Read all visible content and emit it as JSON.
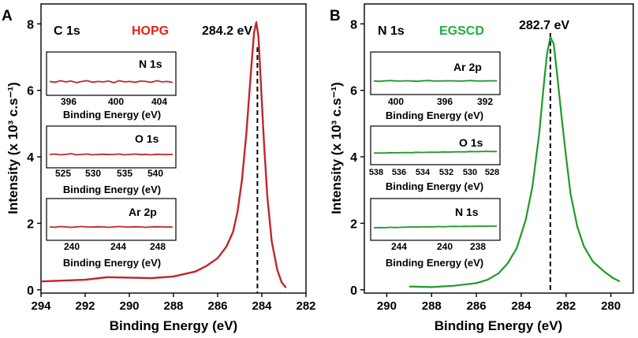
{
  "colors": {
    "hopg": "#c0272d",
    "egscd": "#1f9a2a",
    "axis": "#000000"
  },
  "chart_data": [
    {
      "panel_label": "A",
      "type": "line",
      "title": "C 1s",
      "sample": "HOPG",
      "peak_label": "284.2 eV",
      "peak_position": 284.2,
      "xlabel": "Binding Energy (eV)",
      "ylabel": "Intensity (x 10³  c.s⁻¹)",
      "xlim": [
        294,
        282
      ],
      "ylim": [
        -0.1,
        8.6
      ],
      "x_ticks": [
        294,
        292,
        290,
        288,
        286,
        284,
        282
      ],
      "x_tick_labels": [
        "294",
        "292",
        "290",
        "288",
        "286",
        "284",
        "282"
      ],
      "y_ticks": [
        0,
        2,
        4,
        6,
        8
      ],
      "y_tick_labels": [
        "0",
        "2",
        "4",
        "6",
        "8"
      ],
      "series": [
        {
          "name": "HOPG C 1s",
          "x": [
            294,
            292,
            291,
            289,
            288,
            287,
            286.5,
            286,
            285.6,
            285.3,
            285.1,
            284.9,
            284.7,
            284.5,
            284.35,
            284.25,
            284.15,
            284.05,
            283.9,
            283.75,
            283.55,
            283.3,
            283.1,
            282.9
          ],
          "y": [
            0.25,
            0.3,
            0.38,
            0.35,
            0.4,
            0.55,
            0.72,
            0.95,
            1.3,
            1.75,
            2.35,
            3.3,
            4.7,
            6.5,
            7.75,
            8.05,
            7.6,
            6.3,
            4.4,
            2.8,
            1.45,
            0.6,
            0.22,
            0.06
          ]
        }
      ],
      "insets": [
        {
          "title": "N 1s",
          "xlabel": "Binding Energy (eV)",
          "x_tick_labels": [
            "396",
            "400",
            "404"
          ],
          "signal": [
            0.5,
            0.4,
            0.6,
            0.45,
            0.55,
            0.35,
            0.5,
            0.6,
            0.4,
            0.5,
            0.45,
            0.55,
            0.35,
            0.6,
            0.45,
            0.5,
            0.4,
            0.55,
            0.5,
            0.4,
            0.6,
            0.45,
            0.5,
            0.38
          ]
        },
        {
          "title": "O 1s",
          "xlabel": "Binding Energy (eV)",
          "x_tick_labels": [
            "525",
            "530",
            "535",
            "540"
          ],
          "signal": [
            0.5,
            0.55,
            0.45,
            0.5,
            0.6,
            0.45,
            0.5,
            0.55,
            0.45,
            0.5,
            0.52,
            0.48,
            0.5,
            0.55,
            0.45,
            0.5,
            0.55,
            0.48,
            0.5,
            0.45,
            0.52,
            0.5,
            0.48,
            0.5
          ]
        },
        {
          "title": "Ar 2p",
          "xlabel": "Binding Energy (eV)",
          "x_tick_labels": [
            "240",
            "244",
            "248"
          ],
          "signal": [
            0.5,
            0.45,
            0.55,
            0.5,
            0.45,
            0.5,
            0.55,
            0.5,
            0.48,
            0.52,
            0.5,
            0.45,
            0.5,
            0.55,
            0.5,
            0.48,
            0.52,
            0.5,
            0.45,
            0.5,
            0.52,
            0.5,
            0.48,
            0.5
          ]
        }
      ]
    },
    {
      "panel_label": "B",
      "type": "line",
      "title": "N 1s",
      "sample": "EGSCD",
      "peak_label": "282.7 eV",
      "peak_position": 282.7,
      "xlabel": "Binding Energy (eV)",
      "ylabel": "Intensity (x 10³  c.s⁻¹)",
      "xlim": [
        291,
        279
      ],
      "ylim": [
        -0.1,
        8.6
      ],
      "x_ticks": [
        290,
        288,
        286,
        284,
        282,
        280
      ],
      "x_tick_labels": [
        "290",
        "288",
        "286",
        "284",
        "282",
        "280"
      ],
      "y_ticks": [
        0,
        2,
        4,
        6,
        8
      ],
      "y_tick_labels": [
        "0",
        "2",
        "4",
        "6",
        "8"
      ],
      "series": [
        {
          "name": "EGSCD N 1s",
          "x": [
            289,
            288,
            287,
            286,
            285.5,
            285,
            284.6,
            284.2,
            283.8,
            283.5,
            283.2,
            283,
            282.85,
            282.7,
            282.55,
            282.4,
            282.2,
            282,
            281.8,
            281.5,
            281.2,
            280.8,
            280.3,
            279.9,
            279.6
          ],
          "y": [
            0.1,
            0.08,
            0.12,
            0.2,
            0.3,
            0.5,
            0.8,
            1.25,
            2.1,
            3.1,
            4.7,
            6.1,
            7.1,
            7.6,
            7.4,
            6.5,
            5.2,
            4.0,
            2.9,
            1.9,
            1.3,
            0.85,
            0.55,
            0.35,
            0.25
          ]
        }
      ],
      "insets": [
        {
          "title": "Ar 2p",
          "xlabel": "Binding Energy (eV)",
          "x_tick_labels": [
            "400",
            "396",
            "392"
          ],
          "signal": [
            0.5,
            0.45,
            0.5,
            0.55,
            0.5,
            0.48,
            0.52,
            0.5,
            0.45,
            0.5,
            0.55,
            0.5,
            0.48,
            0.5,
            0.52,
            0.5,
            0.48,
            0.5,
            0.55,
            0.5,
            0.48,
            0.5,
            0.52,
            0.5
          ]
        },
        {
          "title": "O 1s",
          "xlabel": "Binding Energy (eV)",
          "x_tick_labels": [
            "538",
            "536",
            "534",
            "532",
            "530",
            "528"
          ],
          "signal": [
            0.4,
            0.42,
            0.4,
            0.45,
            0.43,
            0.45,
            0.47,
            0.45,
            0.5,
            0.48,
            0.5,
            0.52,
            0.5,
            0.55,
            0.53,
            0.55,
            0.57,
            0.55,
            0.6,
            0.58,
            0.6,
            0.62,
            0.6,
            0.6
          ]
        },
        {
          "title": "N 1s",
          "xlabel": "Binding Energy (eV)",
          "x_tick_labels": [
            "244",
            "240",
            "238"
          ],
          "signal": [
            0.4,
            0.42,
            0.4,
            0.45,
            0.42,
            0.45,
            0.47,
            0.5,
            0.48,
            0.5,
            0.52,
            0.5,
            0.55,
            0.52,
            0.55,
            0.57,
            0.55,
            0.58,
            0.56,
            0.58,
            0.6,
            0.58,
            0.6,
            0.6
          ]
        }
      ]
    }
  ]
}
